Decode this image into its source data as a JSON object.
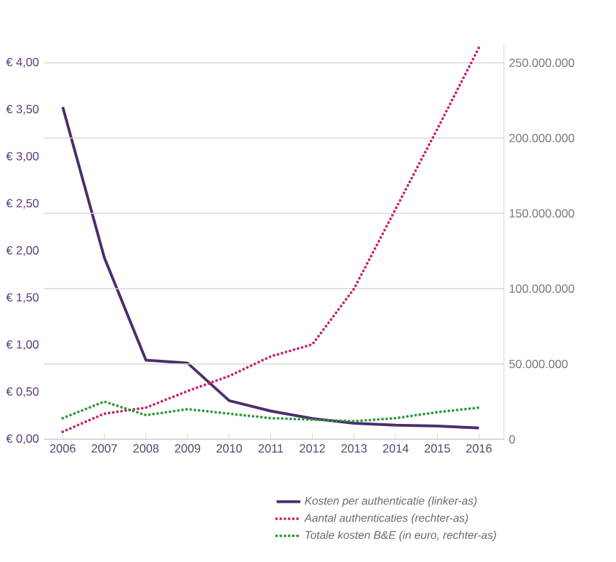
{
  "chart_data": {
    "type": "line",
    "categories": [
      "2006",
      "2007",
      "2008",
      "2009",
      "2010",
      "2011",
      "2012",
      "2013",
      "2014",
      "2015",
      "2016"
    ],
    "series": [
      {
        "name": "Kosten per authenticatie (linker-as)",
        "color": "#4b2e6b",
        "line_style": "solid",
        "values": [
          3.53,
          1.93,
          0.84,
          0.81,
          0.41,
          0.3,
          0.22,
          0.17,
          0.15,
          0.14,
          0.12
        ]
      },
      {
        "name": "Aantal authenticaties (rechter-as)",
        "color": "#c8246e",
        "line_style": "dotted",
        "axis": "y2",
        "values": [
          5000000,
          17000000,
          21000000,
          32000000,
          42000000,
          55000000,
          63000000,
          100000000,
          153000000,
          206000000,
          260000000
        ]
      },
      {
        "name": "Totale kosten B&E (in euro, rechter-as)",
        "color": "#2e9a3a",
        "line_style": "dotted",
        "axis": "y2",
        "values": [
          14000000,
          25000000,
          16000000,
          20000000,
          17000000,
          14000000,
          13000000,
          12000000,
          14000000,
          18000000,
          21000000
        ]
      }
    ],
    "ylim": [
      0,
      4.2
    ],
    "yticks": [
      {
        "value": 0,
        "label": "€ 0,00"
      },
      {
        "value": 0.5,
        "label": "€ 0,50"
      },
      {
        "value": 1,
        "label": "€ 1,00"
      },
      {
        "value": 1.5,
        "label": "€ 1,50"
      },
      {
        "value": 2,
        "label": "€ 2,00"
      },
      {
        "value": 2.5,
        "label": "€ 2,50"
      },
      {
        "value": 3,
        "label": "€ 3,00"
      },
      {
        "value": 3.5,
        "label": "€ 3,50"
      },
      {
        "value": 4,
        "label": "€ 4,00"
      }
    ],
    "y2lim": [
      0,
      262500000
    ],
    "y2ticks": [
      0,
      {
        "value": 50000000,
        "label": "50.000.000"
      },
      {
        "value": 100000000,
        "label": "100.000.000"
      },
      {
        "value": 150000000,
        "label": "150.000.000"
      },
      {
        "value": 200000000,
        "label": "200.000.000"
      },
      {
        "value": 250000000,
        "label": "250.000.000"
      }
    ],
    "grid": "y",
    "legend": "bottom right",
    "marker": "none"
  }
}
